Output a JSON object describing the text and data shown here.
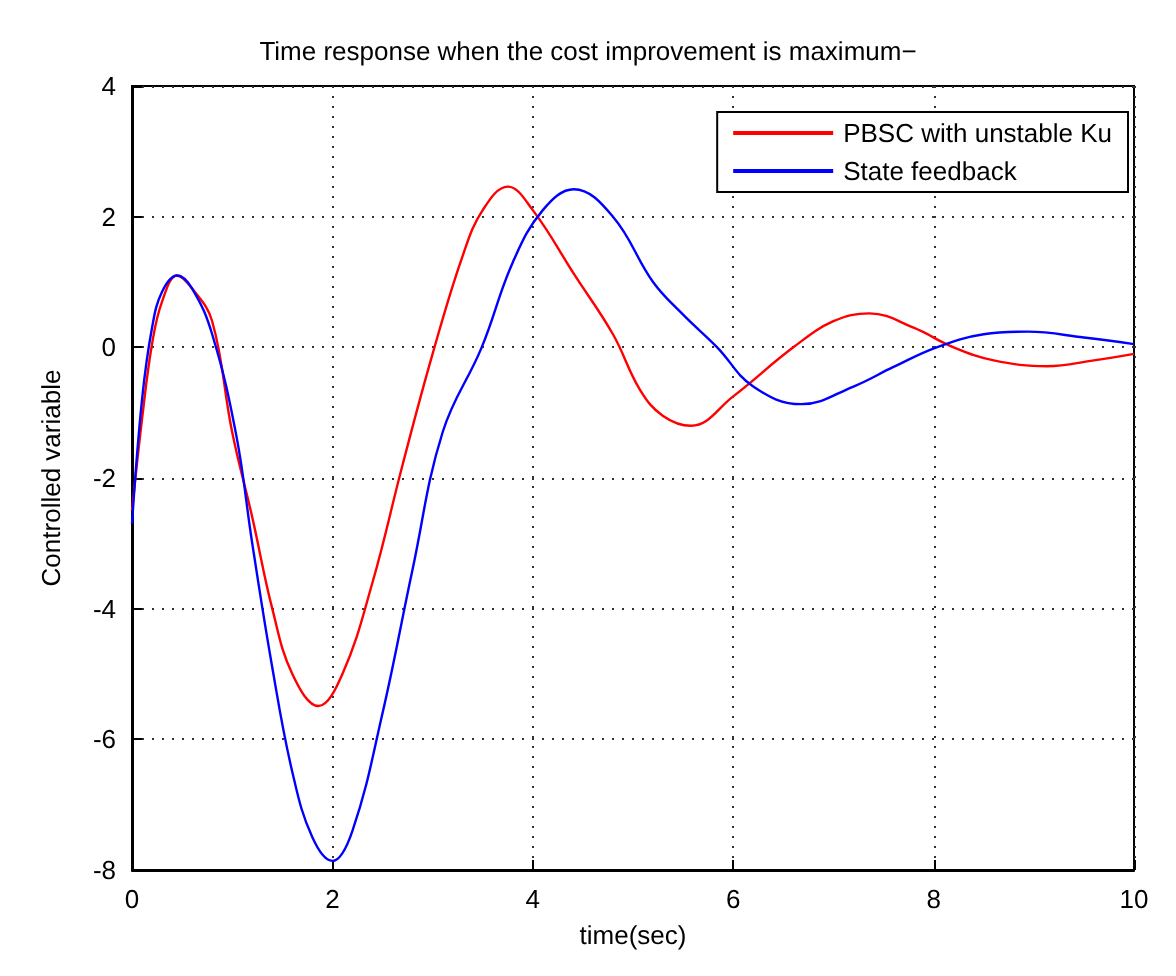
{
  "chart_data": {
    "type": "line",
    "title": "Time response when the cost improvement is maximum−",
    "xlabel": "time(sec)",
    "ylabel": "Controlled variable",
    "xlim": [
      0,
      10
    ],
    "xticks": [
      0,
      2,
      4,
      6,
      8,
      10
    ],
    "ylim": [
      -8,
      4
    ],
    "yticks": [
      -8,
      -6,
      -4,
      -2,
      0,
      2,
      4
    ],
    "grid": true,
    "legend": "top right",
    "marker": "none",
    "line_style": "solid",
    "series": [
      {
        "name": "PBSC with unstable Ku",
        "color": "#ff0000",
        "x": [
          0,
          0.1,
          0.2,
          0.3,
          0.45,
          0.6,
          0.8,
          1.0,
          1.2,
          1.4,
          1.6,
          1.86,
          2.1,
          2.4,
          2.7,
          3.0,
          3.3,
          3.5,
          3.75,
          4.0,
          4.42,
          4.8,
          5.07,
          5.3,
          5.58,
          6.0,
          6.6,
          7.0,
          7.36,
          7.8,
          8.2,
          8.6,
          9.13,
          9.6,
          10
        ],
        "values": [
          -2.5,
          -1.1,
          0.05,
          0.7,
          1.1,
          0.9,
          0.4,
          -1.3,
          -2.6,
          -4.0,
          -5.0,
          -5.49,
          -5.0,
          -3.6,
          -1.8,
          -0.1,
          1.4,
          2.1,
          2.46,
          2.1,
          1.1,
          0.2,
          -0.65,
          -1.05,
          -1.2,
          -0.75,
          0,
          0.4,
          0.52,
          0.3,
          0,
          -0.2,
          -0.29,
          -0.2,
          -0.1
        ]
      },
      {
        "name": "State feedback",
        "color": "#0000ff",
        "x": [
          0,
          0.1,
          0.2,
          0.3,
          0.45,
          0.6,
          0.8,
          1.04,
          1.2,
          1.4,
          1.6,
          1.8,
          2.0,
          2.2,
          2.5,
          2.8,
          3.1,
          3.49,
          3.8,
          4.1,
          4.41,
          4.8,
          5.2,
          5.5,
          5.84,
          6.2,
          6.68,
          7.2,
          7.6,
          8.03,
          8.5,
          8.94,
          9.5,
          10
        ],
        "values": [
          -2.7,
          -0.8,
          0.3,
          0.85,
          1.1,
          0.9,
          0.2,
          -1.34,
          -3.0,
          -4.9,
          -6.5,
          -7.5,
          -7.86,
          -7.4,
          -5.6,
          -3.4,
          -1.3,
          0,
          1.3,
          2.1,
          2.42,
          2.0,
          1.0,
          0.5,
          0,
          -0.6,
          -0.87,
          -0.6,
          -0.3,
          0,
          0.2,
          0.24,
          0.15,
          0.05
        ]
      }
    ]
  }
}
